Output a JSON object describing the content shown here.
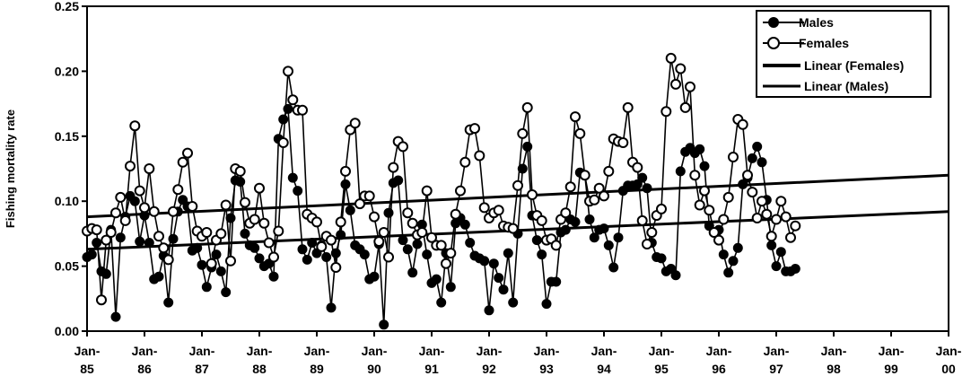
{
  "chart_data": {
    "type": "line",
    "title": "",
    "xlabel": "",
    "ylabel": "Fishing mortality rate",
    "ylim": [
      0.0,
      0.25
    ],
    "yticks": [
      "0.00",
      "0.05",
      "0.10",
      "0.15",
      "0.20",
      "0.25"
    ],
    "xticks": [
      {
        "top": "Jan-",
        "bottom": "85"
      },
      {
        "top": "Jan-",
        "bottom": "86"
      },
      {
        "top": "Jan-",
        "bottom": "87"
      },
      {
        "top": "Jan-",
        "bottom": "88"
      },
      {
        "top": "Jan-",
        "bottom": "89"
      },
      {
        "top": "Jan-",
        "bottom": "90"
      },
      {
        "top": "Jan-",
        "bottom": "91"
      },
      {
        "top": "Jan-",
        "bottom": "92"
      },
      {
        "top": "Jan-",
        "bottom": "93"
      },
      {
        "top": "Jan-",
        "bottom": "94"
      },
      {
        "top": "Jan-",
        "bottom": "95"
      },
      {
        "top": "Jan-",
        "bottom": "96"
      },
      {
        "top": "Jan-",
        "bottom": "97"
      },
      {
        "top": "Jan-",
        "bottom": "98"
      },
      {
        "top": "Jan-",
        "bottom": "99"
      },
      {
        "top": "Jan-",
        "bottom": "00"
      }
    ],
    "x_range_years": [
      1985,
      2000
    ],
    "grid": false,
    "legend_position": "top-right",
    "series": [
      {
        "name": "Males",
        "marker": "filled-circle",
        "start_year": 1985,
        "values": [
          0.057,
          0.059,
          0.068,
          0.046,
          0.044,
          0.078,
          0.011,
          0.072,
          0.088,
          0.104,
          0.1,
          0.069,
          0.089,
          0.068,
          0.04,
          0.042,
          0.058,
          0.022,
          0.071,
          0.092,
          0.101,
          0.096,
          0.062,
          0.064,
          0.051,
          0.034,
          0.049,
          0.059,
          0.046,
          0.03,
          0.087,
          0.116,
          0.115,
          0.075,
          0.066,
          0.064,
          0.056,
          0.05,
          0.052,
          0.042,
          0.148,
          0.163,
          0.171,
          0.118,
          0.108,
          0.063,
          0.055,
          0.068,
          0.06,
          0.066,
          0.057,
          0.018,
          0.06,
          0.074,
          0.113,
          0.093,
          0.066,
          0.063,
          0.059,
          0.04,
          0.042,
          0.067,
          0.005,
          0.091,
          0.114,
          0.116,
          0.07,
          0.063,
          0.045,
          0.067,
          0.082,
          0.059,
          0.037,
          0.04,
          0.022,
          0.06,
          0.034,
          0.083,
          0.087,
          0.082,
          0.068,
          0.058,
          0.056,
          0.054,
          0.016,
          0.052,
          0.041,
          0.032,
          0.06,
          0.022,
          0.075,
          0.125,
          0.142,
          0.089,
          0.07,
          0.059,
          0.021,
          0.038,
          0.038,
          0.076,
          0.078,
          0.086,
          0.084,
          0.122,
          0.12,
          0.086,
          0.072,
          0.078,
          0.079,
          0.066,
          0.049,
          0.072,
          0.108,
          0.112,
          0.112,
          0.113,
          0.118,
          0.11,
          0.068,
          0.057,
          0.056,
          0.046,
          0.048,
          0.043,
          0.123,
          0.138,
          0.141,
          0.137,
          0.14,
          0.127,
          0.081,
          0.076,
          0.078,
          0.059,
          0.045,
          0.054,
          0.064,
          0.113,
          0.118,
          0.133,
          0.142,
          0.13,
          0.101,
          0.066,
          0.05,
          0.061,
          0.046,
          0.046,
          0.048
        ]
      },
      {
        "name": "Females",
        "marker": "open-circle",
        "start_year": 1985,
        "values": [
          0.077,
          0.079,
          0.078,
          0.024,
          0.07,
          0.076,
          0.091,
          0.103,
          0.085,
          0.127,
          0.158,
          0.108,
          0.095,
          0.125,
          0.092,
          0.073,
          0.064,
          0.055,
          0.092,
          0.109,
          0.13,
          0.137,
          0.096,
          0.077,
          0.073,
          0.076,
          0.052,
          0.07,
          0.075,
          0.097,
          0.054,
          0.125,
          0.123,
          0.099,
          0.083,
          0.086,
          0.11,
          0.083,
          0.068,
          0.057,
          0.077,
          0.145,
          0.2,
          0.178,
          0.17,
          0.17,
          0.09,
          0.087,
          0.084,
          0.065,
          0.073,
          0.07,
          0.049,
          0.084,
          0.123,
          0.155,
          0.16,
          0.098,
          0.104,
          0.104,
          0.088,
          0.069,
          0.076,
          0.057,
          0.126,
          0.146,
          0.142,
          0.091,
          0.083,
          0.074,
          0.076,
          0.108,
          0.072,
          0.066,
          0.066,
          0.052,
          0.06,
          0.09,
          0.108,
          0.13,
          0.155,
          0.156,
          0.135,
          0.095,
          0.087,
          0.091,
          0.093,
          0.081,
          0.08,
          0.079,
          0.112,
          0.152,
          0.172,
          0.105,
          0.089,
          0.085,
          0.07,
          0.071,
          0.066,
          0.086,
          0.091,
          0.111,
          0.165,
          0.152,
          0.12,
          0.1,
          0.101,
          0.11,
          0.104,
          0.123,
          0.148,
          0.146,
          0.145,
          0.172,
          0.13,
          0.126,
          0.085,
          0.067,
          0.076,
          0.089,
          0.094,
          0.169,
          0.21,
          0.19,
          0.202,
          0.172,
          0.188,
          0.12,
          0.097,
          0.108,
          0.093,
          0.076,
          0.07,
          0.086,
          0.103,
          0.134,
          0.163,
          0.159,
          0.12,
          0.107,
          0.087,
          0.1,
          0.09,
          0.073,
          0.086,
          0.1,
          0.088,
          0.072,
          0.081
        ]
      },
      {
        "name": "Linear (Females)",
        "type": "trendline",
        "start": {
          "year": 1985,
          "value": 0.088
        },
        "end": {
          "year": 2000,
          "value": 0.12
        }
      },
      {
        "name": "Linear (Males)",
        "type": "trendline",
        "start": {
          "year": 1985,
          "value": 0.063
        },
        "end": {
          "year": 2000,
          "value": 0.092
        }
      }
    ]
  }
}
